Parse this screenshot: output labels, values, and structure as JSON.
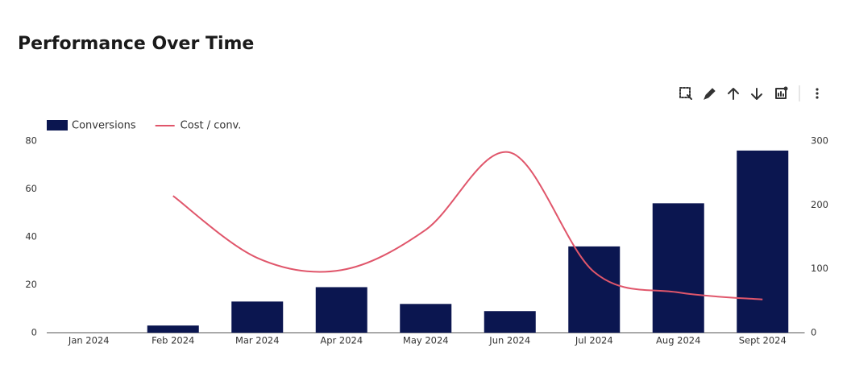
{
  "chart_data": {
    "type": "bar",
    "title": "Performance Over Time",
    "categories": [
      "Jan 2024",
      "Feb 2024",
      "Mar 2024",
      "Apr 2024",
      "May 2024",
      "Jun 2024",
      "Jul 2024",
      "Aug 2024",
      "Sept 2024"
    ],
    "series": [
      {
        "name": "Conversions",
        "type": "bar",
        "color": "#0b1650",
        "values": [
          0,
          3,
          13,
          19,
          12,
          9,
          36,
          54,
          76
        ]
      },
      {
        "name": "Cost / conv.",
        "type": "line",
        "axis": "y2",
        "color": "#e0566b",
        "values": [
          null,
          214,
          117,
          98,
          161,
          282,
          95,
          63,
          52
        ]
      }
    ],
    "ylim": [
      0,
      80
    ],
    "yticks": [
      0,
      20,
      40,
      60,
      80
    ],
    "y2lim": [
      0,
      300
    ],
    "y2ticks": [
      0,
      100,
      200,
      300
    ],
    "grid": false
  }
}
